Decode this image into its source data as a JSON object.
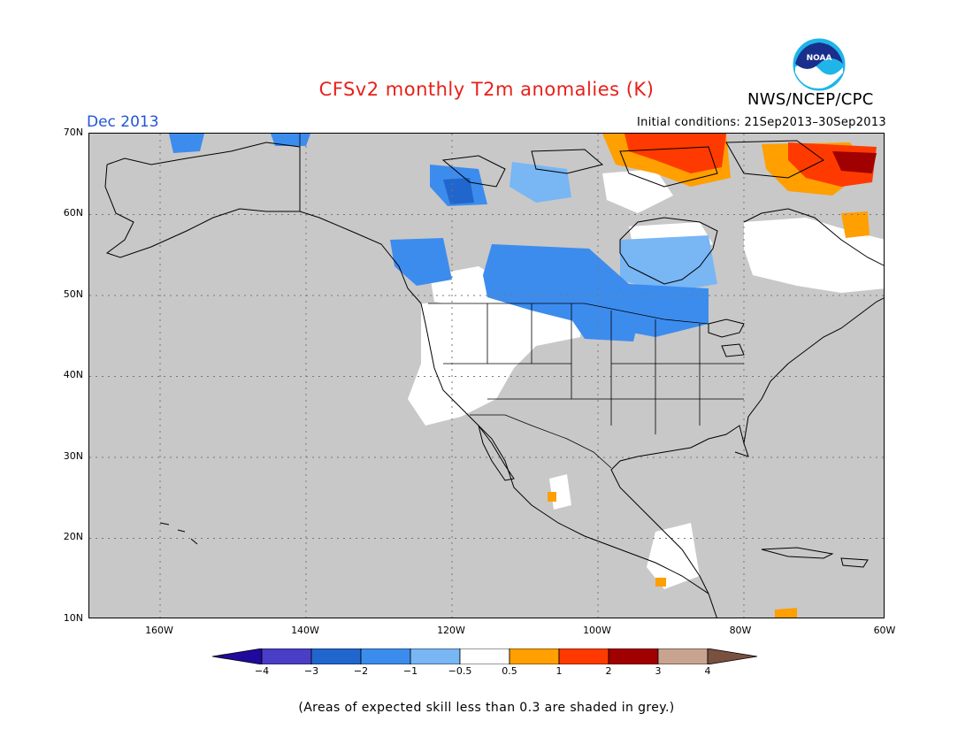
{
  "title": "CFSv2 monthly T2m anomalies (K)",
  "agency": "NWS/NCEP/CPC",
  "logo_text": "NOAA",
  "forecast_month": "Dec 2013",
  "initial_conditions": "Initial conditions: 21Sep2013–30Sep2013",
  "lat_labels": [
    "70N",
    "60N",
    "50N",
    "40N",
    "30N",
    "20N",
    "10N"
  ],
  "lon_labels": [
    "160W",
    "140W",
    "120W",
    "100W",
    "80W",
    "60W"
  ],
  "colorbar": {
    "ticks": [
      "−4",
      "−3",
      "−2",
      "−1",
      "−0.5",
      "0.5",
      "1",
      "2",
      "3",
      "4"
    ],
    "colors": [
      "#1f0a9c",
      "#4a3ec6",
      "#2166cd",
      "#3c8cee",
      "#78b6f4",
      "#ffffff",
      "#ff9f00",
      "#ff3a00",
      "#a00000",
      "#c8a490",
      "#7a5040"
    ]
  },
  "footnote": "(Areas of expected skill less than 0.3 are shaded in grey.)",
  "colors": {
    "title": "#e8201a",
    "month": "#2255d6",
    "skill_grey": "#c8c8c8",
    "land_line": "#000000"
  }
}
